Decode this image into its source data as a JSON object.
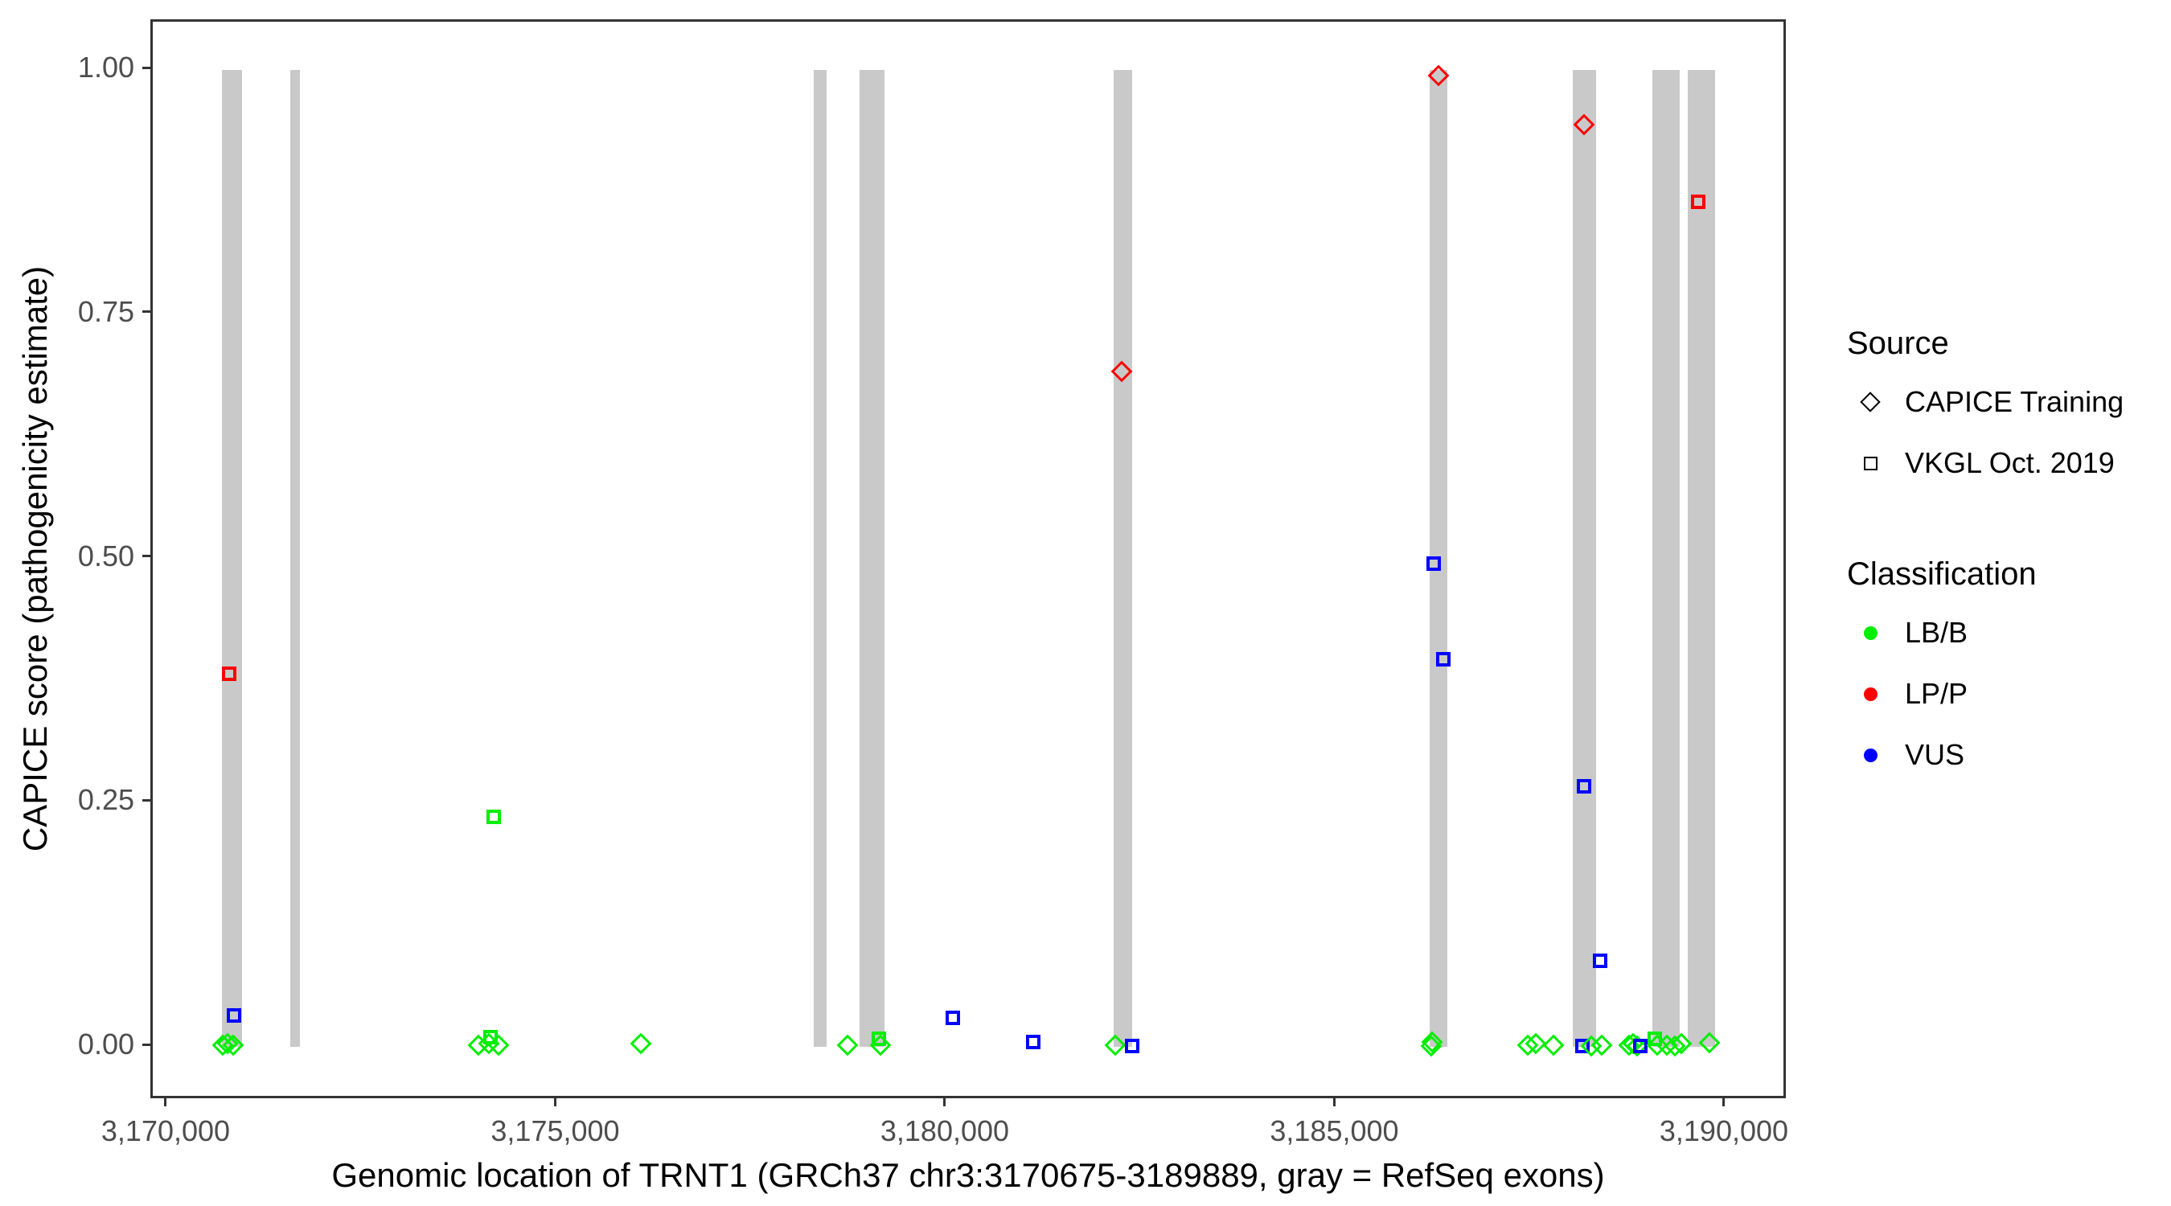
{
  "x_axis": {
    "label": "Genomic location of TRNT1 (GRCh37 chr3:3170675-3189889, gray = RefSeq exons)",
    "ticks": [
      {
        "value": 3170000,
        "label": "3,170,000"
      },
      {
        "value": 3175000,
        "label": "3,175,000"
      },
      {
        "value": 3180000,
        "label": "3,180,000"
      },
      {
        "value": 3185000,
        "label": "3,185,000"
      },
      {
        "value": 3190000,
        "label": "3,190,000"
      }
    ]
  },
  "y_axis": {
    "label": "CAPICE score (pathogenicity estimate)",
    "ticks": [
      {
        "value": 0.0,
        "label": "0.00"
      },
      {
        "value": 0.25,
        "label": "0.25"
      },
      {
        "value": 0.5,
        "label": "0.50"
      },
      {
        "value": 0.75,
        "label": "0.75"
      },
      {
        "value": 1.0,
        "label": "1.00"
      }
    ]
  },
  "legend": {
    "source": {
      "title": "Source",
      "items": [
        {
          "label": "CAPICE Training",
          "marker": "diamond"
        },
        {
          "label": "VKGL Oct. 2019",
          "marker": "square"
        }
      ]
    },
    "classification": {
      "title": "Classification",
      "items": [
        {
          "label": "LB/B",
          "color": "#00ee00"
        },
        {
          "label": "LP/P",
          "color": "#ff0000"
        },
        {
          "label": "VUS",
          "color": "#0000ff"
        }
      ]
    }
  },
  "chart_data": {
    "type": "scatter",
    "title": "",
    "xlabel": "Genomic location of TRNT1 (GRCh37 chr3:3170675-3189889, gray = RefSeq exons)",
    "ylabel": "CAPICE score (pathogenicity estimate)",
    "xlim": [
      3169804,
      3190795
    ],
    "ylim": [
      -0.055,
      1.049
    ],
    "grid": false,
    "legend_position": "right",
    "exon_color": "#c9c9c9",
    "exon_bar_value_span": [
      0,
      1
    ],
    "colors": {
      "LB/B": "#00ee00",
      "LP/P": "#ff0000",
      "VUS": "#0000ff"
    },
    "shapes": {
      "CAPICE Training": "diamond",
      "VKGL Oct. 2019": "square"
    },
    "exons": [
      [
        3170691,
        3170949
      ],
      [
        3171568,
        3171692
      ],
      [
        3178286,
        3178451
      ],
      [
        3178875,
        3179195
      ],
      [
        3182136,
        3182374
      ],
      [
        3186192,
        3186419
      ],
      [
        3188029,
        3188328
      ],
      [
        3189051,
        3189402
      ],
      [
        3189505,
        3189856
      ]
    ],
    "points": [
      {
        "pos": 3170700,
        "score": 0.002,
        "source": "CAPICE Training",
        "classification": "LB/B"
      },
      {
        "pos": 3170762,
        "score": 0.003,
        "source": "CAPICE Training",
        "classification": "LB/B"
      },
      {
        "pos": 3170833,
        "score": 0.002,
        "source": "CAPICE Training",
        "classification": "LB/B"
      },
      {
        "pos": 3170784,
        "score": 0.382,
        "source": "VKGL Oct. 2019",
        "classification": "LP/P"
      },
      {
        "pos": 3170846,
        "score": 0.032,
        "source": "VKGL Oct. 2019",
        "classification": "VUS"
      },
      {
        "pos": 3173983,
        "score": 0.002,
        "source": "CAPICE Training",
        "classification": "LB/B"
      },
      {
        "pos": 3174120,
        "score": 0.003,
        "source": "CAPICE Training",
        "classification": "LB/B"
      },
      {
        "pos": 3174138,
        "score": 0.01,
        "source": "VKGL Oct. 2019",
        "classification": "LB/B"
      },
      {
        "pos": 3174179,
        "score": 0.235,
        "source": "VKGL Oct. 2019",
        "classification": "LB/B"
      },
      {
        "pos": 3174240,
        "score": 0.002,
        "source": "CAPICE Training",
        "classification": "LB/B"
      },
      {
        "pos": 3176068,
        "score": 0.003,
        "source": "CAPICE Training",
        "classification": "LB/B"
      },
      {
        "pos": 3178720,
        "score": 0.002,
        "source": "CAPICE Training",
        "classification": "LB/B"
      },
      {
        "pos": 3179124,
        "score": 0.008,
        "source": "VKGL Oct. 2019",
        "classification": "LB/B"
      },
      {
        "pos": 3179145,
        "score": 0.002,
        "source": "CAPICE Training",
        "classification": "LB/B"
      },
      {
        "pos": 3180072,
        "score": 0.03,
        "source": "VKGL Oct. 2019",
        "classification": "VUS"
      },
      {
        "pos": 3181104,
        "score": 0.005,
        "source": "VKGL Oct. 2019",
        "classification": "VUS"
      },
      {
        "pos": 3182159,
        "score": 0.002,
        "source": "CAPICE Training",
        "classification": "LB/B"
      },
      {
        "pos": 3182239,
        "score": 0.691,
        "source": "CAPICE Training",
        "classification": "LP/P"
      },
      {
        "pos": 3182375,
        "score": 0.001,
        "source": "VKGL Oct. 2019",
        "classification": "VUS"
      },
      {
        "pos": 3186213,
        "score": 0.001,
        "source": "CAPICE Training",
        "classification": "LB/B"
      },
      {
        "pos": 3186223,
        "score": 0.005,
        "source": "CAPICE Training",
        "classification": "LB/B"
      },
      {
        "pos": 3186244,
        "score": 0.495,
        "source": "VKGL Oct. 2019",
        "classification": "VUS"
      },
      {
        "pos": 3186306,
        "score": 0.994,
        "source": "CAPICE Training",
        "classification": "LP/P"
      },
      {
        "pos": 3186368,
        "score": 0.397,
        "source": "VKGL Oct. 2019",
        "classification": "VUS"
      },
      {
        "pos": 3187449,
        "score": 0.002,
        "source": "CAPICE Training",
        "classification": "LB/B"
      },
      {
        "pos": 3187552,
        "score": 0.003,
        "source": "CAPICE Training",
        "classification": "LB/B"
      },
      {
        "pos": 3187779,
        "score": 0.002,
        "source": "CAPICE Training",
        "classification": "LB/B"
      },
      {
        "pos": 3188153,
        "score": 0.001,
        "source": "VKGL Oct. 2019",
        "classification": "VUS"
      },
      {
        "pos": 3188174,
        "score": 0.944,
        "source": "CAPICE Training",
        "classification": "LP/P"
      },
      {
        "pos": 3188174,
        "score": 0.267,
        "source": "VKGL Oct. 2019",
        "classification": "VUS"
      },
      {
        "pos": 3188266,
        "score": 0.001,
        "source": "CAPICE Training",
        "classification": "LB/B"
      },
      {
        "pos": 3188380,
        "score": 0.088,
        "source": "VKGL Oct. 2019",
        "classification": "VUS"
      },
      {
        "pos": 3188401,
        "score": 0.002,
        "source": "CAPICE Training",
        "classification": "LB/B"
      },
      {
        "pos": 3188749,
        "score": 0.002,
        "source": "CAPICE Training",
        "classification": "LB/B"
      },
      {
        "pos": 3188800,
        "score": 0.003,
        "source": "CAPICE Training",
        "classification": "LB/B"
      },
      {
        "pos": 3188852,
        "score": 0.001,
        "source": "CAPICE Training",
        "classification": "LB/B"
      },
      {
        "pos": 3188900,
        "score": 0.001,
        "source": "VKGL Oct. 2019",
        "classification": "VUS"
      },
      {
        "pos": 3189080,
        "score": 0.008,
        "source": "VKGL Oct. 2019",
        "classification": "LB/B"
      },
      {
        "pos": 3189113,
        "score": 0.002,
        "source": "CAPICE Training",
        "classification": "LB/B"
      },
      {
        "pos": 3189237,
        "score": 0.002,
        "source": "CAPICE Training",
        "classification": "LB/B"
      },
      {
        "pos": 3189340,
        "score": 0.001,
        "source": "CAPICE Training",
        "classification": "LB/B"
      },
      {
        "pos": 3189423,
        "score": 0.003,
        "source": "CAPICE Training",
        "classification": "LB/B"
      },
      {
        "pos": 3189639,
        "score": 0.865,
        "source": "VKGL Oct. 2019",
        "classification": "LP/P"
      },
      {
        "pos": 3189785,
        "score": 0.004,
        "source": "CAPICE Training",
        "classification": "LB/B"
      }
    ]
  }
}
